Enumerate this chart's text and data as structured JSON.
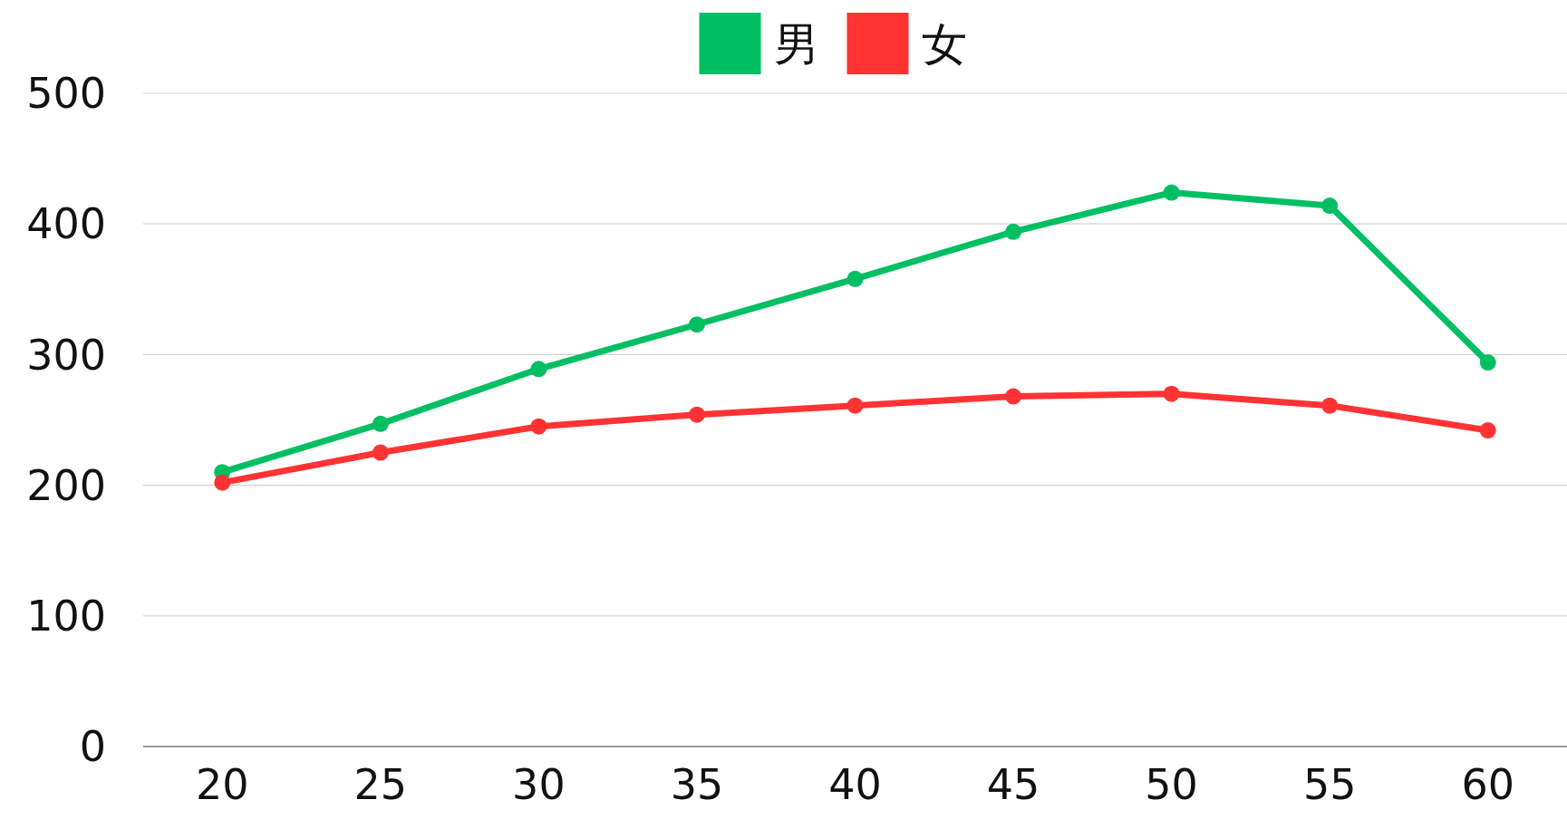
{
  "chart_data": {
    "type": "line",
    "categories": [
      "20",
      "25",
      "30",
      "35",
      "40",
      "45",
      "50",
      "55",
      "60"
    ],
    "series": [
      {
        "name": "男",
        "color": "#00bf63",
        "values": [
          210,
          247,
          289,
          323,
          358,
          394,
          424,
          414,
          294
        ]
      },
      {
        "name": "女",
        "color": "#ff3333",
        "values": [
          202,
          225,
          245,
          254,
          261,
          268,
          270,
          261,
          242
        ]
      }
    ],
    "ylim": [
      0,
      500
    ],
    "yticks": [
      0,
      100,
      200,
      300,
      400,
      500
    ],
    "grid": "y",
    "legend": "top",
    "marker": "circle",
    "line_style": "solid"
  }
}
